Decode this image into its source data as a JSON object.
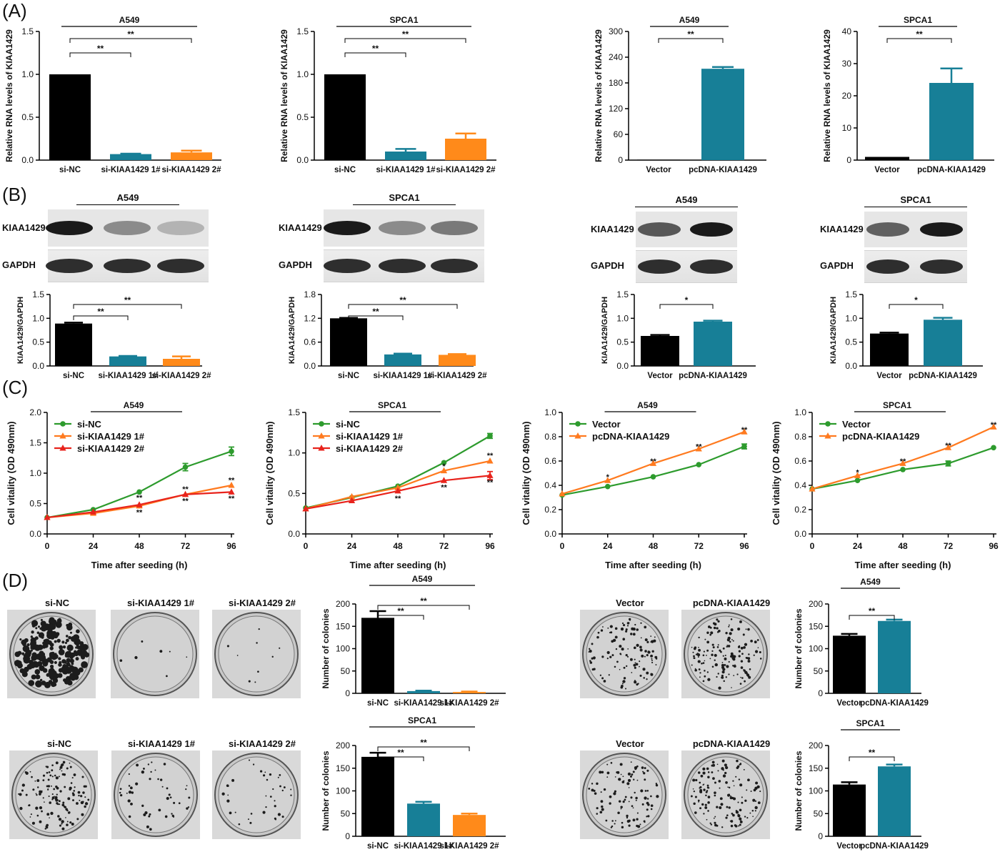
{
  "panels": {
    "A": "(A)",
    "B": "(B)",
    "C": "(C)",
    "D": "(D)"
  },
  "colors": {
    "black": "#000000",
    "teal": "#177f97",
    "orange": "#ff8a1a",
    "green": "#2d9b2d",
    "lineOrange": "#ff7a1f",
    "red": "#e8231c"
  },
  "chart_data": [
    {
      "id": "A1",
      "panel": "A",
      "type": "bar",
      "title": "A549",
      "ylabel": "Relative RNA levels of KIAA1429",
      "ylim": [
        0,
        1.5
      ],
      "yticks": [
        "0.0",
        "0.5",
        "1.0",
        "1.5"
      ],
      "categories": [
        "si-NC",
        "si-KIAA1429 1#",
        "si-KIAA1429 2#"
      ],
      "values": [
        1.0,
        0.07,
        0.09
      ],
      "errors": [
        0,
        0.005,
        0.02
      ],
      "significance": [
        {
          "from": 0,
          "to": 1,
          "label": "**"
        },
        {
          "from": 0,
          "to": 2,
          "label": "**"
        }
      ]
    },
    {
      "id": "A2",
      "panel": "A",
      "type": "bar",
      "title": "SPCA1",
      "ylabel": "Relative RNA levels of KIAA1429",
      "ylim": [
        0,
        1.5
      ],
      "yticks": [
        "0.0",
        "0.5",
        "1.0",
        "1.5"
      ],
      "categories": [
        "si-NC",
        "si-KIAA1429 1#",
        "si-KIAA1429 2#"
      ],
      "values": [
        1.0,
        0.1,
        0.25
      ],
      "errors": [
        0,
        0.03,
        0.06
      ],
      "significance": [
        {
          "from": 0,
          "to": 1,
          "label": "**"
        },
        {
          "from": 0,
          "to": 2,
          "label": "**"
        }
      ]
    },
    {
      "id": "A3",
      "panel": "A",
      "type": "bar",
      "title": "A549",
      "ylabel": "Relative RNA levels of KIAA1429",
      "ylim": [
        0,
        300
      ],
      "yticks": [
        "0",
        "60",
        "120",
        "180",
        "240",
        "300"
      ],
      "categories": [
        "Vector",
        "pcDNA-KIAA1429"
      ],
      "values": [
        1,
        213
      ],
      "errors": [
        0,
        4
      ],
      "significance": [
        {
          "from": 0,
          "to": 1,
          "label": "**"
        }
      ]
    },
    {
      "id": "A4",
      "panel": "A",
      "type": "bar",
      "title": "SPCA1",
      "ylabel": "Relative RNA levels of KIAA1429",
      "ylim": [
        0,
        40
      ],
      "yticks": [
        "0",
        "10",
        "20",
        "30",
        "40"
      ],
      "categories": [
        "Vector",
        "pcDNA-KIAA1429"
      ],
      "values": [
        1,
        24
      ],
      "errors": [
        0,
        4.5
      ],
      "significance": [
        {
          "from": 0,
          "to": 1,
          "label": "**"
        }
      ]
    },
    {
      "id": "B1",
      "panel": "B",
      "type": "bar",
      "title": "",
      "ylabel": "KIAA1429/GAPDH",
      "ylim": [
        0,
        1.5
      ],
      "yticks": [
        "0.0",
        "0.5",
        "1.0",
        "1.5"
      ],
      "categories": [
        "si-NC",
        "si-KIAA1429 1#",
        "si-KIAA1429 2#"
      ],
      "values": [
        0.89,
        0.2,
        0.15
      ],
      "errors": [
        0.02,
        0.01,
        0.05
      ],
      "significance": [
        {
          "from": 0,
          "to": 1,
          "label": "**"
        },
        {
          "from": 0,
          "to": 2,
          "label": "**"
        }
      ]
    },
    {
      "id": "B2",
      "panel": "B",
      "type": "bar",
      "title": "",
      "ylabel": "KIAA1429/GAPDH",
      "ylim": [
        0,
        1.8
      ],
      "yticks": [
        "0.0",
        "0.6",
        "1.2",
        "1.8"
      ],
      "categories": [
        "si-NC",
        "si-KIAA1429 1#",
        "si-KIAA1429 2#"
      ],
      "values": [
        1.2,
        0.29,
        0.28
      ],
      "errors": [
        0.01,
        0.02,
        0.02
      ],
      "significance": [
        {
          "from": 0,
          "to": 1,
          "label": "**"
        },
        {
          "from": 0,
          "to": 2,
          "label": "**"
        }
      ]
    },
    {
      "id": "B3",
      "panel": "B",
      "type": "bar",
      "title": "",
      "ylabel": "KIAA1429/GAPDH",
      "ylim": [
        0,
        1.5
      ],
      "yticks": [
        "0.0",
        "0.5",
        "1.0",
        "1.5"
      ],
      "categories": [
        "Vector",
        "pcDNA-KIAA1429"
      ],
      "values": [
        0.63,
        0.93
      ],
      "errors": [
        0.02,
        0.02
      ],
      "significance": [
        {
          "from": 0,
          "to": 1,
          "label": "*"
        }
      ]
    },
    {
      "id": "B4",
      "panel": "B",
      "type": "bar",
      "title": "",
      "ylabel": "KIAA1429/GAPDH",
      "ylim": [
        0,
        1.5
      ],
      "yticks": [
        "0.0",
        "0.5",
        "1.0",
        "1.5"
      ],
      "categories": [
        "Vector",
        "pcDNA-KIAA1429"
      ],
      "values": [
        0.68,
        0.97
      ],
      "errors": [
        0.02,
        0.04
      ],
      "significance": [
        {
          "from": 0,
          "to": 1,
          "label": "*"
        }
      ]
    },
    {
      "id": "C1",
      "panel": "C",
      "type": "line",
      "title": "A549",
      "xlabel": "Time after seeding (h)",
      "ylabel": "Cell vitality (OD 490nm)",
      "x": [
        0,
        24,
        48,
        72,
        96
      ],
      "xticks": [
        "0",
        "24",
        "48",
        "72",
        "96"
      ],
      "ylim": [
        0,
        2.0
      ],
      "yticks": [
        "0.0",
        "0.5",
        "1.0",
        "1.5",
        "2.0"
      ],
      "series": [
        {
          "name": "si-NC",
          "color": "#2d9b2d",
          "marker": "circle",
          "values": [
            0.27,
            0.4,
            0.69,
            1.1,
            1.36
          ],
          "errors": [
            0,
            0,
            0,
            0.06,
            0.07
          ]
        },
        {
          "name": "si-KIAA1429 1#",
          "color": "#ff7a1f",
          "marker": "triangle",
          "values": [
            0.27,
            0.34,
            0.46,
            0.65,
            0.8
          ],
          "errors": [
            0,
            0,
            0,
            0,
            0
          ]
        },
        {
          "name": "si-KIAA1429 2#",
          "color": "#e8231c",
          "marker": "triangle",
          "values": [
            0.27,
            0.36,
            0.48,
            0.65,
            0.69
          ],
          "errors": [
            0,
            0,
            0,
            0,
            0
          ]
        }
      ],
      "annotations": [
        {
          "x": 48,
          "y": 0.6,
          "text": "**"
        },
        {
          "x": 48,
          "y": 0.36,
          "text": "**"
        },
        {
          "x": 72,
          "y": 0.74,
          "text": "**"
        },
        {
          "x": 72,
          "y": 0.55,
          "text": "**"
        },
        {
          "x": 96,
          "y": 0.89,
          "text": "**"
        },
        {
          "x": 96,
          "y": 0.59,
          "text": "**"
        }
      ]
    },
    {
      "id": "C2",
      "panel": "C",
      "type": "line",
      "title": "SPCA1",
      "xlabel": "Time after seeding (h)",
      "ylabel": "Cell vitality (OD 490nm)",
      "x": [
        0,
        24,
        48,
        72,
        96
      ],
      "xticks": [
        "0",
        "24",
        "48",
        "72",
        "96"
      ],
      "ylim": [
        0,
        1.5
      ],
      "yticks": [
        "0.0",
        "0.5",
        "1.0",
        "1.5"
      ],
      "series": [
        {
          "name": "si-NC",
          "color": "#2d9b2d",
          "marker": "circle",
          "values": [
            0.32,
            0.45,
            0.59,
            0.88,
            1.21
          ],
          "errors": [
            0,
            0,
            0,
            0,
            0.03
          ]
        },
        {
          "name": "si-KIAA1429 1#",
          "color": "#ff7a1f",
          "marker": "triangle",
          "values": [
            0.31,
            0.46,
            0.57,
            0.78,
            0.9
          ],
          "errors": [
            0,
            0,
            0,
            0,
            0
          ]
        },
        {
          "name": "si-KIAA1429 2#",
          "color": "#e8231c",
          "marker": "triangle",
          "values": [
            0.31,
            0.41,
            0.53,
            0.66,
            0.72
          ],
          "errors": [
            0,
            0,
            0,
            0,
            0.05
          ]
        }
      ],
      "annotations": [
        {
          "x": 48,
          "y": 0.44,
          "text": "**"
        },
        {
          "x": 72,
          "y": 0.84,
          "text": "*"
        },
        {
          "x": 72,
          "y": 0.58,
          "text": "**"
        },
        {
          "x": 96,
          "y": 0.97,
          "text": "**"
        },
        {
          "x": 96,
          "y": 0.64,
          "text": "**"
        }
      ]
    },
    {
      "id": "C3",
      "panel": "C",
      "type": "line",
      "title": "A549",
      "xlabel": "Time after seeding (h)",
      "ylabel": "Cell vitality (OD 490nm)",
      "x": [
        0,
        24,
        48,
        72,
        96
      ],
      "xticks": [
        "0",
        "24",
        "48",
        "72",
        "96"
      ],
      "ylim": [
        0,
        1.0
      ],
      "yticks": [
        "0.0",
        "0.2",
        "0.4",
        "0.6",
        "0.8",
        "1.0"
      ],
      "series": [
        {
          "name": "Vector",
          "color": "#2d9b2d",
          "marker": "circle",
          "values": [
            0.32,
            0.39,
            0.47,
            0.57,
            0.72
          ],
          "errors": [
            0,
            0,
            0,
            0,
            0.02
          ]
        },
        {
          "name": "pcDNA-KIAA1429",
          "color": "#ff7a1f",
          "marker": "triangle",
          "values": [
            0.33,
            0.44,
            0.58,
            0.7,
            0.84
          ],
          "errors": [
            0,
            0,
            0,
            0,
            0
          ]
        }
      ],
      "annotations": [
        {
          "x": 24,
          "y": 0.47,
          "text": "*"
        },
        {
          "x": 48,
          "y": 0.6,
          "text": "**"
        },
        {
          "x": 72,
          "y": 0.72,
          "text": "**"
        },
        {
          "x": 96,
          "y": 0.86,
          "text": "**"
        }
      ]
    },
    {
      "id": "C4",
      "panel": "C",
      "type": "line",
      "title": "SPCA1",
      "xlabel": "Time after seeding (h)",
      "ylabel": "Cell vitality (OD 490nm)",
      "x": [
        0,
        24,
        48,
        72,
        96
      ],
      "xticks": [
        "0",
        "24",
        "48",
        "72",
        "96"
      ],
      "ylim": [
        0,
        1.0
      ],
      "yticks": [
        "0.0",
        "0.2",
        "0.4",
        "0.6",
        "0.8",
        "1.0"
      ],
      "series": [
        {
          "name": "Vector",
          "color": "#2d9b2d",
          "marker": "circle",
          "values": [
            0.37,
            0.44,
            0.53,
            0.58,
            0.71
          ],
          "errors": [
            0,
            0,
            0,
            0.02,
            0
          ]
        },
        {
          "name": "pcDNA-KIAA1429",
          "color": "#ff7a1f",
          "marker": "triangle",
          "values": [
            0.37,
            0.48,
            0.58,
            0.71,
            0.88
          ],
          "errors": [
            0,
            0,
            0,
            0,
            0
          ]
        }
      ],
      "annotations": [
        {
          "x": 24,
          "y": 0.51,
          "text": "*"
        },
        {
          "x": 48,
          "y": 0.6,
          "text": "**"
        },
        {
          "x": 72,
          "y": 0.73,
          "text": "**"
        },
        {
          "x": 96,
          "y": 0.9,
          "text": "**"
        }
      ]
    },
    {
      "id": "D1",
      "panel": "D",
      "type": "bar",
      "title": "A549",
      "ylabel": "Number of colonies",
      "ylim": [
        0,
        200
      ],
      "yticks": [
        "0",
        "50",
        "100",
        "150",
        "200"
      ],
      "categories": [
        "si-NC",
        "si-KIAA1429 1#",
        "si-KIAA1429 2#"
      ],
      "values": [
        169,
        5,
        3
      ],
      "errors": [
        15,
        1,
        1
      ],
      "significance": [
        {
          "from": 0,
          "to": 1,
          "label": "**"
        },
        {
          "from": 0,
          "to": 2,
          "label": "**"
        }
      ]
    },
    {
      "id": "D2",
      "panel": "D",
      "type": "bar",
      "title": "SPCA1",
      "ylabel": "Number of colonies",
      "ylim": [
        0,
        200
      ],
      "yticks": [
        "0",
        "50",
        "100",
        "150",
        "200"
      ],
      "categories": [
        "si-NC",
        "si-KIAA1429 1#",
        "si-KIAA1429 2#"
      ],
      "values": [
        175,
        72,
        47
      ],
      "errors": [
        9,
        4,
        3
      ],
      "significance": [
        {
          "from": 0,
          "to": 1,
          "label": "**"
        },
        {
          "from": 0,
          "to": 2,
          "label": "**"
        }
      ]
    },
    {
      "id": "D3",
      "panel": "D",
      "type": "bar",
      "title": "A549",
      "ylabel": "Number of colonies",
      "ylim": [
        0,
        200
      ],
      "yticks": [
        "0",
        "50",
        "100",
        "150",
        "200"
      ],
      "categories": [
        "Vector",
        "pcDNA-KIAA1429"
      ],
      "values": [
        129,
        162
      ],
      "errors": [
        4,
        3
      ],
      "significance": [
        {
          "from": 0,
          "to": 1,
          "label": "**"
        }
      ]
    },
    {
      "id": "D4",
      "panel": "D",
      "type": "bar",
      "title": "SPCA1",
      "ylabel": "Number of colonies",
      "ylim": [
        0,
        200
      ],
      "yticks": [
        "0",
        "50",
        "100",
        "150",
        "200"
      ],
      "categories": [
        "Vector",
        "pcDNA-KIAA1429"
      ],
      "values": [
        114,
        154
      ],
      "errors": [
        5,
        4
      ],
      "significance": [
        {
          "from": 0,
          "to": 1,
          "label": "**"
        }
      ]
    }
  ],
  "western_blots": [
    {
      "title": "A549",
      "rows": [
        "KIAA1429",
        "GAPDH"
      ],
      "kiaa_intensity": [
        1.0,
        0.35,
        0.12
      ],
      "gapdh_intensity": [
        1,
        1,
        1
      ]
    },
    {
      "title": "SPCA1",
      "rows": [
        "KIAA1429",
        "GAPDH"
      ],
      "kiaa_intensity": [
        1.0,
        0.35,
        0.45
      ],
      "gapdh_intensity": [
        1,
        1,
        1
      ]
    },
    {
      "title": "A549",
      "rows": [
        "KIAA1429",
        "GAPDH"
      ],
      "kiaa_intensity": [
        0.65,
        1.0
      ],
      "gapdh_intensity": [
        1,
        1
      ]
    },
    {
      "title": "SPCA1",
      "rows": [
        "KIAA1429",
        "GAPDH"
      ],
      "kiaa_intensity": [
        0.6,
        1.0
      ],
      "gapdh_intensity": [
        1,
        1
      ]
    }
  ],
  "colony_plates": [
    {
      "label": "si-NC",
      "density": 1.0
    },
    {
      "label": "si-KIAA1429 1#",
      "density": 0.02
    },
    {
      "label": "si-KIAA1429 2#",
      "density": 0.03
    },
    {
      "label": "Vector",
      "density": 0.5
    },
    {
      "label": "pcDNA-KIAA1429",
      "density": 0.65
    },
    {
      "label": "si-NC",
      "density": 0.6
    },
    {
      "label": "si-KIAA1429 1#",
      "density": 0.2
    },
    {
      "label": "si-KIAA1429 2#",
      "density": 0.15
    },
    {
      "label": "Vector",
      "density": 0.45
    },
    {
      "label": "pcDNA-KIAA1429",
      "density": 0.6
    }
  ]
}
